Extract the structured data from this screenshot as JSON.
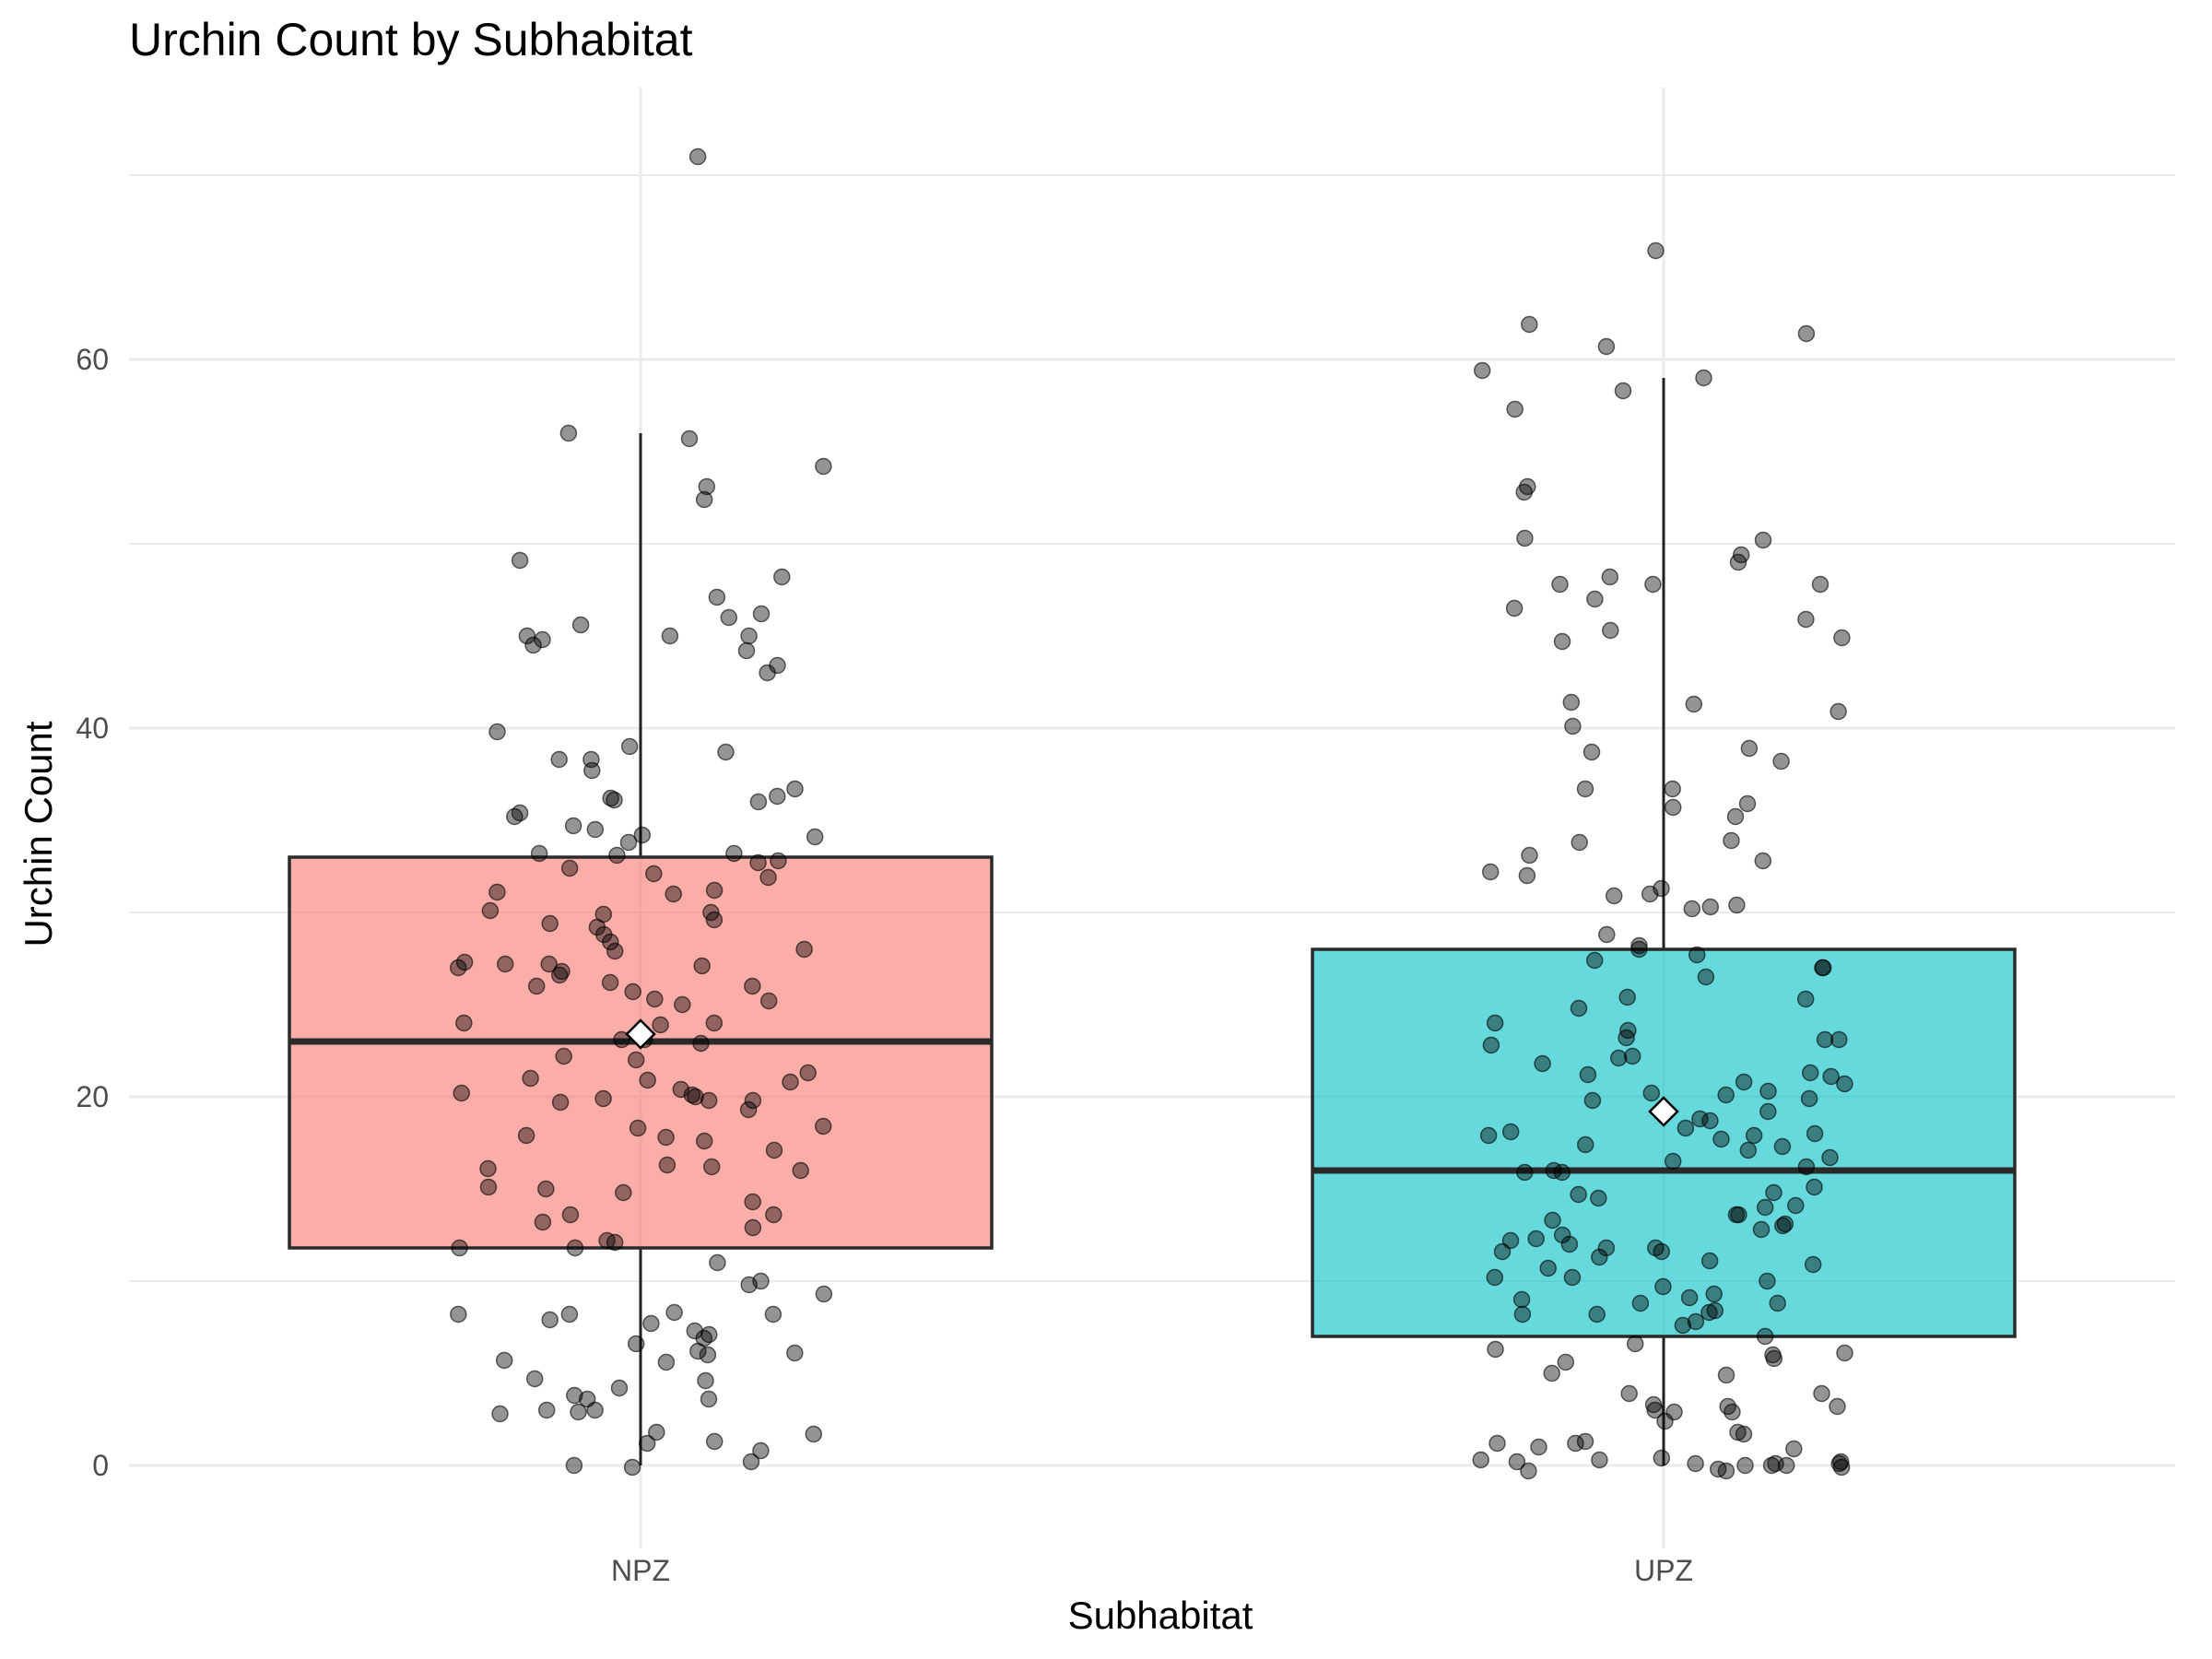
{
  "chart_data": {
    "type": "box",
    "title": "Urchin Count by Subhabitat",
    "xlabel": "Subhabitat",
    "ylabel": "Urchin Count",
    "categories": [
      "NPZ",
      "UPZ"
    ],
    "ylim": [
      -4,
      74
    ],
    "yticks": [
      0,
      20,
      40,
      60
    ],
    "grid": true,
    "legend": "none",
    "colors": {
      "NPZ": "#F8766D",
      "UPZ": "#00BFC4",
      "mean_marker": "#ffffff",
      "points": "#000000"
    },
    "boxes": [
      {
        "category": "NPZ",
        "min": 0,
        "q1": 11.8,
        "median": 23,
        "q3": 33,
        "max": 56,
        "mean": 23.4
      },
      {
        "category": "UPZ",
        "min": 0,
        "q1": 7,
        "median": 16,
        "q3": 28,
        "max": 59,
        "mean": 19.2
      }
    ],
    "points": [
      {
        "category": "NPZ",
        "values": [
          71,
          56,
          55.7,
          54.2,
          53.1,
          52.4,
          49.1,
          48.2,
          47.1,
          46.2,
          46,
          45.6,
          45,
          45,
          45,
          44.8,
          44.5,
          44.2,
          43.4,
          43,
          39.8,
          39,
          38.7,
          38.3,
          38.3,
          37.7,
          36.7,
          36.3,
          36.2,
          36.1,
          36,
          35.4,
          35.2,
          34.7,
          34.5,
          34.2,
          34.1,
          33.8,
          33.2,
          33.2,
          33.1,
          32.8,
          32.7,
          32.4,
          32.1,
          31.9,
          31.2,
          31.1,
          31,
          30.1,
          30,
          29.9,
          29.6,
          29.4,
          29.2,
          28.8,
          28.4,
          28,
          27.9,
          27.3,
          27.2,
          27.2,
          27.1,
          27,
          26.8,
          26.6,
          26.2,
          26,
          26,
          25.7,
          25.3,
          25.2,
          25,
          24,
          24,
          23.9,
          23.1,
          23.1,
          22.9,
          22.2,
          22,
          21.3,
          21,
          20.9,
          20.8,
          20.4,
          20.2,
          20.1,
          20,
          19.9,
          19.8,
          19.8,
          19.7,
          19.3,
          18.4,
          18.3,
          17.9,
          17.8,
          17.6,
          17.1,
          16.3,
          16.2,
          16.1,
          16,
          15.1,
          15,
          14.8,
          14.3,
          13.6,
          13.6,
          13.2,
          12.9,
          12.2,
          12.1,
          11.8,
          11.8,
          11,
          10,
          9.8,
          9.3,
          8.3,
          8.2,
          8.2,
          8.2,
          7.9,
          7.7,
          7.3,
          7.1,
          6.9,
          6.6,
          6.2,
          6.1,
          6,
          5.7,
          5.6,
          4.7,
          4.6,
          4.2,
          3.8,
          3.6,
          3.6,
          3,
          3,
          2.9,
          2.8,
          1.8,
          1.7,
          1.3,
          1.2,
          0.8,
          0.2,
          0,
          -0.1
        ]
      },
      {
        "category": "UPZ",
        "values": [
          65.9,
          61.9,
          61.4,
          60.7,
          59.4,
          59,
          58.3,
          57.3,
          53.1,
          52.8,
          50.3,
          50.2,
          49.4,
          49,
          48.2,
          47.8,
          47.8,
          47.8,
          47,
          46.5,
          45.9,
          45.3,
          44.9,
          44.7,
          41.4,
          41.3,
          40.9,
          40.1,
          38.9,
          38.7,
          38.2,
          36.7,
          36.7,
          35.9,
          35.7,
          35.2,
          33.9,
          33.8,
          33.1,
          32.8,
          32.2,
          32,
          31.3,
          31,
          30.9,
          30.4,
          30.3,
          30.2,
          28.8,
          28.2,
          28,
          27.7,
          27.4,
          27,
          27,
          26.5,
          25.4,
          25.3,
          24.8,
          24,
          23.6,
          23.2,
          23.1,
          23.1,
          22.8,
          22.2,
          22.1,
          21.8,
          21.3,
          21.2,
          21.1,
          20.8,
          20.7,
          20.3,
          20.2,
          20.1,
          19.9,
          19.8,
          19.2,
          18.8,
          18.7,
          18.3,
          18.1,
          18,
          17.9,
          17.9,
          17.7,
          17.4,
          17.3,
          17.1,
          16.7,
          16.5,
          16.2,
          16,
          15.9,
          15.9,
          15.1,
          14.8,
          14.7,
          14.5,
          14.1,
          14,
          13.6,
          13.6,
          13.3,
          13.1,
          13,
          12.8,
          12.5,
          12.3,
          12.2,
          12,
          11.8,
          11.8,
          11.6,
          11.6,
          11.3,
          11.1,
          10.9,
          10.7,
          10.2,
          10.2,
          10,
          9.7,
          9.3,
          9.1,
          9,
          8.8,
          8.8,
          8.4,
          8.3,
          8.2,
          8.2,
          7.8,
          7.6,
          7,
          6.6,
          6.3,
          6.1,
          6,
          5.8,
          5.6,
          5,
          4.9,
          3.9,
          3.9,
          3.3,
          3.2,
          3.2,
          3,
          2.9,
          2.9,
          2.4,
          1.8,
          1.7,
          1.3,
          1.2,
          1.2,
          1,
          0.9,
          0.4,
          0.3,
          0.3,
          0.2,
          0.2,
          0.1,
          0.1,
          0.1,
          0,
          0,
          0,
          -0.1,
          -0.2,
          -0.3,
          -0.3
        ]
      }
    ]
  }
}
